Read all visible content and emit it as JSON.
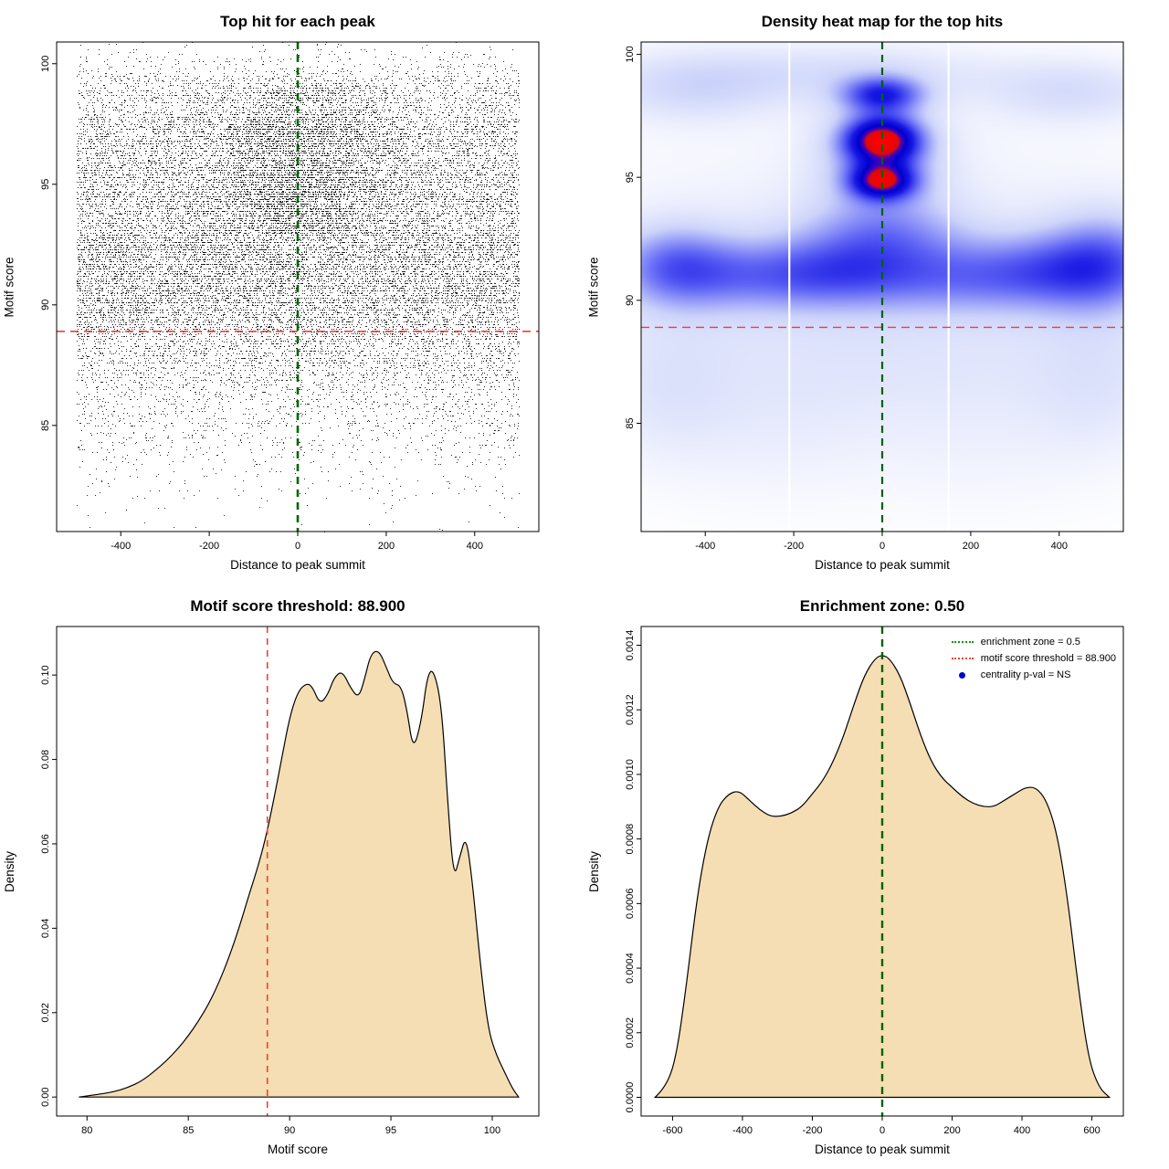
{
  "figure": {
    "background": "#ffffff"
  },
  "chart_data": [
    {
      "type": "scatter",
      "title": "Top hit for each peak",
      "xlabel": "Distance to peak summit",
      "ylabel": "Motif score",
      "xlim": [
        -545,
        545
      ],
      "ylim": [
        80.6,
        100.9
      ],
      "xticks": [
        -400,
        -200,
        0,
        200,
        400
      ],
      "xtick_labels": [
        "-400",
        "-200",
        "0",
        "200",
        "400"
      ],
      "yticks": [
        85,
        90,
        95,
        100
      ],
      "ytick_labels": [
        "85",
        "90",
        "95",
        "100"
      ],
      "grid": false,
      "vline": {
        "x": 0,
        "color": "#006400",
        "width": 2.6,
        "dash": [
          8,
          6
        ]
      },
      "hline": {
        "y": 88.9,
        "color": "#ee4035",
        "width": 1.6,
        "dash": [
          9,
          6
        ]
      },
      "points": {
        "n": 26000,
        "seed": 11,
        "color": "#000000",
        "size": 1,
        "row_step": 0.1,
        "x_range": [
          -500,
          500
        ],
        "density_source": 2,
        "center_bias": {
          "fraction": 0.3,
          "sd": 115,
          "y_min": 93,
          "y_max": 99.2
        }
      }
    },
    {
      "type": "heatmap",
      "title": "Density heat map for the top hits",
      "xlabel": "Distance to peak summit",
      "ylabel": "Motif score",
      "xlim": [
        -545,
        545
      ],
      "ylim": [
        80.6,
        100.5
      ],
      "xticks": [
        -400,
        -200,
        0,
        200,
        400
      ],
      "xtick_labels": [
        "-400",
        "-200",
        "0",
        "200",
        "400"
      ],
      "yticks": [
        85,
        90,
        95,
        100
      ],
      "ytick_labels": [
        "85",
        "90",
        "95",
        "100"
      ],
      "vline": {
        "x": 0,
        "color": "#006400",
        "width": 2.2,
        "dash": [
          8,
          6
        ]
      },
      "hline": {
        "y": 88.9,
        "color": "#ee4035",
        "width": 1.4,
        "dash": [
          9,
          6
        ]
      },
      "white_stripes": [
        -210,
        150
      ],
      "vmax": 1.6,
      "colormap": [
        {
          "t": 0.0,
          "c": [
            255,
            255,
            255
          ]
        },
        {
          "t": 0.2,
          "c": [
            205,
            212,
            250
          ]
        },
        {
          "t": 0.42,
          "c": [
            95,
            100,
            245
          ]
        },
        {
          "t": 0.58,
          "c": [
            25,
            25,
            228
          ]
        },
        {
          "t": 0.72,
          "c": [
            0,
            0,
            205
          ]
        },
        {
          "t": 0.8,
          "c": [
            70,
            0,
            185
          ]
        },
        {
          "t": 0.86,
          "c": [
            220,
            10,
            10
          ]
        },
        {
          "t": 1.0,
          "c": [
            255,
            0,
            0
          ]
        }
      ],
      "density_blobs": [
        {
          "x": 0,
          "y": 96.5,
          "sx": 58,
          "sy": 0.65,
          "a": 1.2
        },
        {
          "x": 0,
          "y": 94.85,
          "sx": 50,
          "sy": 0.5,
          "a": 1.05
        },
        {
          "x": 0,
          "y": 95.8,
          "sx": 100,
          "sy": 1.7,
          "a": 0.38
        },
        {
          "x": 0,
          "y": 98.35,
          "sx": 62,
          "sy": 0.5,
          "a": 0.7
        },
        {
          "x": 0,
          "y": 92.6,
          "sx": 130,
          "sy": 1.0,
          "a": 0.33
        },
        {
          "x": -470,
          "y": 91.4,
          "sx": 95,
          "sy": 1.15,
          "a": 0.48
        },
        {
          "x": -280,
          "y": 91.0,
          "sx": 150,
          "sy": 1.0,
          "a": 0.36
        },
        {
          "x": -90,
          "y": 91.1,
          "sx": 130,
          "sy": 0.95,
          "a": 0.3
        },
        {
          "x": 160,
          "y": 90.9,
          "sx": 170,
          "sy": 1.0,
          "a": 0.33
        },
        {
          "x": 380,
          "y": 91.2,
          "sx": 130,
          "sy": 1.05,
          "a": 0.38
        },
        {
          "x": 505,
          "y": 91.6,
          "sx": 95,
          "sy": 1.4,
          "a": 0.46
        },
        {
          "x": -430,
          "y": 98.7,
          "sx": 160,
          "sy": 1.05,
          "a": 0.27
        },
        {
          "x": -60,
          "y": 99.3,
          "sx": 220,
          "sy": 0.85,
          "a": 0.2
        },
        {
          "x": 430,
          "y": 98.5,
          "sx": 150,
          "sy": 0.95,
          "a": 0.24
        },
        {
          "x": 0,
          "y": 91.6,
          "sx": 520,
          "sy": 3.4,
          "a": 0.16
        },
        {
          "x": 0,
          "y": 87.4,
          "sx": 470,
          "sy": 2.4,
          "a": 0.11
        },
        {
          "x": -490,
          "y": 86.2,
          "sx": 110,
          "sy": 2.2,
          "a": 0.12
        },
        {
          "x": 490,
          "y": 86.6,
          "sx": 110,
          "sy": 2.2,
          "a": 0.12
        },
        {
          "x": -240,
          "y": 84.3,
          "sx": 160,
          "sy": 2.1,
          "a": 0.07
        },
        {
          "x": 210,
          "y": 83.9,
          "sx": 190,
          "sy": 2.1,
          "a": 0.06
        }
      ]
    },
    {
      "type": "area",
      "title": "Motif score threshold: 88.900",
      "xlabel": "Motif score",
      "ylabel": "Density",
      "xlim": [
        78.5,
        102.3
      ],
      "ylim": [
        -0.0045,
        0.1115
      ],
      "xticks": [
        80,
        85,
        90,
        95,
        100
      ],
      "xtick_labels": [
        "80",
        "85",
        "90",
        "95",
        "100"
      ],
      "yticks": [
        0,
        0.02,
        0.04,
        0.06,
        0.08,
        0.1
      ],
      "ytick_labels": [
        "0.00",
        "0.02",
        "0.04",
        "0.06",
        "0.08",
        "0.10"
      ],
      "vline": {
        "x": 88.9,
        "color": "#ee4035",
        "width": 1.6,
        "dash": [
          7,
          6
        ]
      },
      "fill": "#f5deb3",
      "curve": {
        "x": [
          79.6,
          80.5,
          81.3,
          82,
          82.7,
          83.3,
          83.9,
          84.5,
          85,
          85.5,
          86,
          86.5,
          87,
          87.5,
          88,
          88.4,
          88.8,
          89.2,
          89.6,
          90,
          90.4,
          90.8,
          91.1,
          91.5,
          91.9,
          92.2,
          92.6,
          93,
          93.4,
          93.7,
          94,
          94.4,
          94.8,
          95.1,
          95.5,
          95.8,
          96.1,
          96.5,
          96.8,
          97.1,
          97.5,
          97.8,
          98.1,
          98.4,
          98.7,
          99,
          99.4,
          99.8,
          100.2,
          100.6,
          101,
          101.3
        ],
        "y": [
          0,
          0.0006,
          0.0012,
          0.0022,
          0.0038,
          0.006,
          0.0085,
          0.0115,
          0.0145,
          0.018,
          0.022,
          0.027,
          0.033,
          0.04,
          0.048,
          0.054,
          0.061,
          0.07,
          0.08,
          0.09,
          0.096,
          0.098,
          0.0975,
          0.093,
          0.0955,
          0.0995,
          0.101,
          0.097,
          0.0945,
          0.099,
          0.105,
          0.106,
          0.1015,
          0.098,
          0.0975,
          0.0915,
          0.082,
          0.089,
          0.1,
          0.1015,
          0.093,
          0.07,
          0.0515,
          0.057,
          0.062,
          0.052,
          0.032,
          0.016,
          0.01,
          0.006,
          0.002,
          0
        ]
      }
    },
    {
      "type": "area",
      "title": "Enrichment zone: 0.50",
      "xlabel": "Distance to peak summit",
      "ylabel": "Density",
      "xlim": [
        -690,
        690
      ],
      "ylim": [
        -5.8e-05,
        0.001458
      ],
      "xticks": [
        -600,
        -400,
        -200,
        0,
        200,
        400,
        600
      ],
      "xtick_labels": [
        "-600",
        "-400",
        "-200",
        "0",
        "200",
        "400",
        "600"
      ],
      "yticks": [
        0,
        0.0002,
        0.0004,
        0.0006,
        0.0008,
        0.001,
        0.0012,
        0.0014
      ],
      "ytick_labels": [
        "0.0000",
        "0.0002",
        "0.0004",
        "0.0006",
        "0.0008",
        "0.0010",
        "0.0012",
        "0.0014"
      ],
      "vline": {
        "x": 0,
        "color": "#006400",
        "width": 2.4,
        "dash": [
          8,
          6
        ]
      },
      "fill": "#f5deb3",
      "curve": {
        "x": [
          -650,
          -620,
          -590,
          -560,
          -530,
          -500,
          -470,
          -440,
          -410,
          -380,
          -350,
          -320,
          -290,
          -260,
          -230,
          -200,
          -170,
          -140,
          -110,
          -80,
          -50,
          -20,
          0,
          20,
          50,
          80,
          110,
          140,
          170,
          200,
          230,
          260,
          290,
          320,
          350,
          380,
          410,
          440,
          470,
          500,
          530,
          560,
          590,
          620,
          650
        ],
        "y": [
          0,
          3e-05,
          0.00012,
          0.00035,
          0.00062,
          0.0008,
          0.0009,
          0.00094,
          0.00095,
          0.00092,
          0.00089,
          0.00087,
          0.00087,
          0.00088,
          0.0009,
          0.00094,
          0.00098,
          0.00104,
          0.00112,
          0.00122,
          0.00131,
          0.00136,
          0.00137,
          0.00136,
          0.00131,
          0.00122,
          0.00112,
          0.00104,
          0.00099,
          0.00096,
          0.00093,
          0.00091,
          0.0009,
          0.0009,
          0.00092,
          0.00094,
          0.00096,
          0.00096,
          0.00092,
          0.00082,
          0.00062,
          0.00035,
          0.00012,
          3e-05,
          0
        ]
      },
      "legend": {
        "entries": [
          {
            "label": "enrichment zone = 0.5",
            "marker": "dotted-line",
            "color": "#00a000"
          },
          {
            "label": "motif score threshold = 88.900",
            "marker": "dotted-line",
            "color": "#ee4035"
          },
          {
            "label": "centrality p-val = NS",
            "marker": "point",
            "color": "#0000cd"
          }
        ]
      }
    }
  ]
}
